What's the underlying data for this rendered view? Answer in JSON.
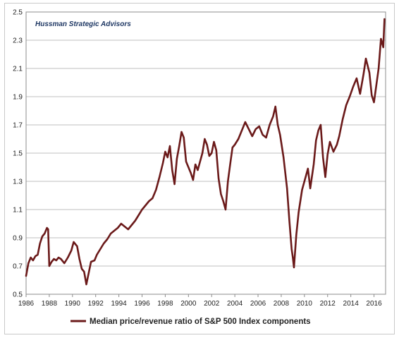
{
  "chart_data": {
    "type": "line",
    "annotation": "Hussman Strategic Advisors",
    "legend": {
      "placement": "bottom",
      "label": "Median price/revenue ratio of S&P 500 Index components"
    },
    "xlim": [
      1986,
      2017
    ],
    "ylim": [
      0.5,
      2.5
    ],
    "x_ticks": [
      "1986",
      "1988",
      "1990",
      "1992",
      "1994",
      "1996",
      "1998",
      "2000",
      "2002",
      "2004",
      "2006",
      "2008",
      "2010",
      "2012",
      "2014",
      "2016"
    ],
    "y_ticks": [
      "0.5",
      "0.7",
      "0.9",
      "1.1",
      "1.3",
      "1.5",
      "1.7",
      "1.9",
      "2.1",
      "2.3",
      "2.5"
    ],
    "grid": "horizontal",
    "color": "#6b1a1a",
    "series": [
      {
        "name": "Median price/revenue ratio of S&P 500 Index components",
        "points": [
          [
            1986.0,
            0.63
          ],
          [
            1986.2,
            0.72
          ],
          [
            1986.4,
            0.76
          ],
          [
            1986.6,
            0.74
          ],
          [
            1986.8,
            0.77
          ],
          [
            1987.0,
            0.78
          ],
          [
            1987.2,
            0.86
          ],
          [
            1987.4,
            0.91
          ],
          [
            1987.6,
            0.93
          ],
          [
            1987.8,
            0.97
          ],
          [
            1987.9,
            0.96
          ],
          [
            1988.0,
            0.7
          ],
          [
            1988.2,
            0.73
          ],
          [
            1988.4,
            0.75
          ],
          [
            1988.6,
            0.74
          ],
          [
            1988.8,
            0.76
          ],
          [
            1989.0,
            0.75
          ],
          [
            1989.3,
            0.72
          ],
          [
            1989.6,
            0.76
          ],
          [
            1989.9,
            0.81
          ],
          [
            1990.1,
            0.87
          ],
          [
            1990.4,
            0.84
          ],
          [
            1990.6,
            0.75
          ],
          [
            1990.8,
            0.68
          ],
          [
            1991.0,
            0.66
          ],
          [
            1991.2,
            0.57
          ],
          [
            1991.4,
            0.65
          ],
          [
            1991.6,
            0.73
          ],
          [
            1991.9,
            0.74
          ],
          [
            1992.1,
            0.78
          ],
          [
            1992.4,
            0.82
          ],
          [
            1992.7,
            0.86
          ],
          [
            1993.0,
            0.89
          ],
          [
            1993.3,
            0.93
          ],
          [
            1993.6,
            0.95
          ],
          [
            1993.9,
            0.97
          ],
          [
            1994.2,
            1.0
          ],
          [
            1994.5,
            0.98
          ],
          [
            1994.8,
            0.96
          ],
          [
            1995.1,
            0.99
          ],
          [
            1995.4,
            1.02
          ],
          [
            1995.7,
            1.06
          ],
          [
            1996.0,
            1.1
          ],
          [
            1996.3,
            1.13
          ],
          [
            1996.6,
            1.16
          ],
          [
            1996.9,
            1.18
          ],
          [
            1997.2,
            1.24
          ],
          [
            1997.5,
            1.33
          ],
          [
            1997.8,
            1.43
          ],
          [
            1998.0,
            1.51
          ],
          [
            1998.2,
            1.47
          ],
          [
            1998.4,
            1.55
          ],
          [
            1998.6,
            1.38
          ],
          [
            1998.8,
            1.28
          ],
          [
            1999.0,
            1.46
          ],
          [
            1999.2,
            1.55
          ],
          [
            1999.4,
            1.65
          ],
          [
            1999.6,
            1.61
          ],
          [
            1999.8,
            1.44
          ],
          [
            2000.0,
            1.4
          ],
          [
            2000.2,
            1.36
          ],
          [
            2000.4,
            1.31
          ],
          [
            2000.6,
            1.42
          ],
          [
            2000.8,
            1.38
          ],
          [
            2001.0,
            1.44
          ],
          [
            2001.2,
            1.5
          ],
          [
            2001.4,
            1.6
          ],
          [
            2001.6,
            1.56
          ],
          [
            2001.8,
            1.48
          ],
          [
            2002.0,
            1.5
          ],
          [
            2002.2,
            1.58
          ],
          [
            2002.4,
            1.52
          ],
          [
            2002.6,
            1.32
          ],
          [
            2002.8,
            1.21
          ],
          [
            2003.0,
            1.16
          ],
          [
            2003.2,
            1.1
          ],
          [
            2003.4,
            1.3
          ],
          [
            2003.6,
            1.42
          ],
          [
            2003.8,
            1.54
          ],
          [
            2004.0,
            1.56
          ],
          [
            2004.3,
            1.6
          ],
          [
            2004.6,
            1.66
          ],
          [
            2004.9,
            1.72
          ],
          [
            2005.2,
            1.67
          ],
          [
            2005.5,
            1.62
          ],
          [
            2005.8,
            1.67
          ],
          [
            2006.1,
            1.69
          ],
          [
            2006.4,
            1.63
          ],
          [
            2006.7,
            1.61
          ],
          [
            2007.0,
            1.7
          ],
          [
            2007.3,
            1.76
          ],
          [
            2007.5,
            1.83
          ],
          [
            2007.7,
            1.7
          ],
          [
            2007.9,
            1.63
          ],
          [
            2008.2,
            1.47
          ],
          [
            2008.5,
            1.25
          ],
          [
            2008.7,
            1.02
          ],
          [
            2008.9,
            0.82
          ],
          [
            2009.0,
            0.76
          ],
          [
            2009.1,
            0.69
          ],
          [
            2009.3,
            0.92
          ],
          [
            2009.5,
            1.08
          ],
          [
            2009.8,
            1.24
          ],
          [
            2010.1,
            1.33
          ],
          [
            2010.3,
            1.39
          ],
          [
            2010.5,
            1.25
          ],
          [
            2010.8,
            1.42
          ],
          [
            2011.0,
            1.59
          ],
          [
            2011.2,
            1.66
          ],
          [
            2011.4,
            1.7
          ],
          [
            2011.6,
            1.47
          ],
          [
            2011.8,
            1.33
          ],
          [
            2012.0,
            1.49
          ],
          [
            2012.2,
            1.58
          ],
          [
            2012.5,
            1.51
          ],
          [
            2012.8,
            1.56
          ],
          [
            2013.0,
            1.62
          ],
          [
            2013.3,
            1.74
          ],
          [
            2013.6,
            1.84
          ],
          [
            2013.9,
            1.9
          ],
          [
            2014.2,
            1.97
          ],
          [
            2014.5,
            2.03
          ],
          [
            2014.8,
            1.92
          ],
          [
            2015.1,
            2.06
          ],
          [
            2015.3,
            2.17
          ],
          [
            2015.6,
            2.07
          ],
          [
            2015.8,
            1.91
          ],
          [
            2016.0,
            1.86
          ],
          [
            2016.2,
            1.98
          ],
          [
            2016.4,
            2.1
          ],
          [
            2016.6,
            2.31
          ],
          [
            2016.8,
            2.25
          ],
          [
            2016.9,
            2.45
          ]
        ]
      }
    ]
  }
}
